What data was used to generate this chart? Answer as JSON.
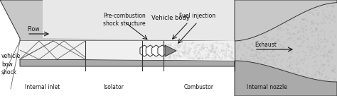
{
  "bg_color": "#ffffff",
  "labels_bottom": [
    "Internal inlet",
    "Isolator",
    "Combustor",
    "Internal nozzle"
  ],
  "label_vehicle_body": "Vehicle body",
  "label_flow": "Flow",
  "label_bow_shock": "vehicle\nbow\nshock",
  "label_exhaust": "Exhaust",
  "label_pre_combustion": "Pre-combustion\nshock structure",
  "label_fuel_injection": "Fuel injection",
  "text_color": "#111111",
  "font_size": 5.5,
  "shock_color": "#666666",
  "edge_color": "#333333",
  "gray_dark": "#aaaaaa",
  "gray_mid": "#c8c8c8",
  "gray_light": "#e0e0e0",
  "gray_vlight": "#eeeeee",
  "stipple_color": "#bbbbbb"
}
